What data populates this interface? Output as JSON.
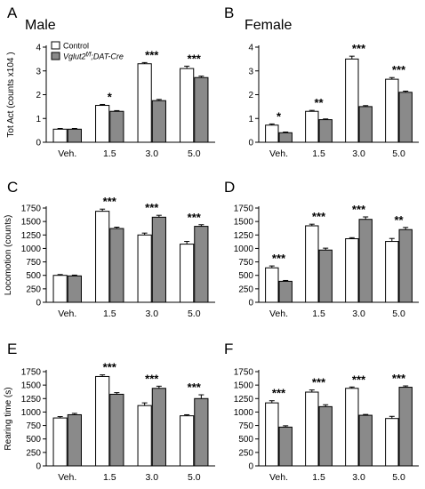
{
  "legend": {
    "control": "Control",
    "mutant_main": "Vglut2",
    "mutant_sup": "f/f",
    "mutant_rest": ";DAT-Cre"
  },
  "colors": {
    "control": "#ffffff",
    "mutant": "#8a8a8a"
  },
  "chart_data": [
    {
      "panel": "A",
      "title": "Male",
      "type": "bar",
      "categories": [
        "Veh.",
        "1.5",
        "3.0",
        "5.0"
      ],
      "ylabel": "Tot Act (counts x104 )",
      "ylim": [
        0,
        4
      ],
      "yticks": [
        0,
        1,
        2,
        3,
        4
      ],
      "series": [
        {
          "name": "Control",
          "values": [
            0.55,
            1.55,
            3.3,
            3.1
          ],
          "errors": [
            0.03,
            0.04,
            0.05,
            0.1
          ]
        },
        {
          "name": "Vglut2 f/f;DAT-Cre",
          "values": [
            0.55,
            1.3,
            1.75,
            2.72
          ],
          "errors": [
            0.03,
            0.03,
            0.05,
            0.06
          ]
        }
      ],
      "significance": [
        "",
        "*",
        "***",
        "***"
      ]
    },
    {
      "panel": "B",
      "title": "Female",
      "type": "bar",
      "categories": [
        "Veh.",
        "1.5",
        "3.0",
        "5.0"
      ],
      "ylabel": "",
      "ylim": [
        0,
        4
      ],
      "yticks": [
        0,
        1,
        2,
        3,
        4
      ],
      "series": [
        {
          "name": "Control",
          "values": [
            0.72,
            1.3,
            3.5,
            2.65
          ],
          "errors": [
            0.05,
            0.04,
            0.12,
            0.07
          ]
        },
        {
          "name": "Vglut2 f/f;DAT-Cre",
          "values": [
            0.4,
            0.95,
            1.5,
            2.1
          ],
          "errors": [
            0.03,
            0.03,
            0.04,
            0.05
          ]
        }
      ],
      "significance": [
        "*",
        "**",
        "***",
        "***"
      ]
    },
    {
      "panel": "C",
      "title": "",
      "type": "bar",
      "categories": [
        "Veh.",
        "1.5",
        "3.0",
        "5.0"
      ],
      "ylabel": "Locomotion (counts)",
      "ylim": [
        0,
        1750
      ],
      "yticks": [
        0,
        250,
        500,
        750,
        1000,
        1250,
        1500,
        1750
      ],
      "series": [
        {
          "name": "Control",
          "values": [
            500,
            1690,
            1250,
            1080
          ],
          "errors": [
            15,
            40,
            35,
            50
          ]
        },
        {
          "name": "Vglut2 f/f;DAT-Cre",
          "values": [
            490,
            1370,
            1580,
            1410
          ],
          "errors": [
            15,
            25,
            35,
            30
          ]
        }
      ],
      "significance": [
        "",
        "***",
        "***",
        "***"
      ]
    },
    {
      "panel": "D",
      "title": "",
      "type": "bar",
      "categories": [
        "Veh.",
        "1.5",
        "3.0",
        "5.0"
      ],
      "ylabel": "",
      "ylim": [
        0,
        1750
      ],
      "yticks": [
        0,
        250,
        500,
        750,
        1000,
        1250,
        1500,
        1750
      ],
      "series": [
        {
          "name": "Control",
          "values": [
            640,
            1420,
            1180,
            1130
          ],
          "errors": [
            35,
            30,
            20,
            55
          ]
        },
        {
          "name": "Vglut2 f/f;DAT-Cre",
          "values": [
            390,
            970,
            1540,
            1350
          ],
          "errors": [
            15,
            35,
            45,
            40
          ]
        }
      ],
      "significance": [
        "***",
        "***",
        "***",
        "**"
      ]
    },
    {
      "panel": "E",
      "title": "",
      "type": "bar",
      "categories": [
        "Veh.",
        "1.5",
        "3.0",
        "5.0"
      ],
      "ylabel": "Rearing time (s)",
      "ylim": [
        0,
        1750
      ],
      "yticks": [
        0,
        250,
        500,
        750,
        1000,
        1250,
        1500,
        1750
      ],
      "series": [
        {
          "name": "Control",
          "values": [
            890,
            1660,
            1120,
            930
          ],
          "errors": [
            25,
            30,
            50,
            20
          ]
        },
        {
          "name": "Vglut2 f/f;DAT-Cre",
          "values": [
            950,
            1330,
            1440,
            1250
          ],
          "errors": [
            25,
            30,
            40,
            70
          ]
        }
      ],
      "significance": [
        "",
        "***",
        "***",
        "***"
      ]
    },
    {
      "panel": "F",
      "title": "",
      "type": "bar",
      "categories": [
        "Veh.",
        "1.5",
        "3.0",
        "5.0"
      ],
      "ylabel": "",
      "ylim": [
        0,
        1750
      ],
      "yticks": [
        0,
        250,
        500,
        750,
        1000,
        1250,
        1500,
        1750
      ],
      "series": [
        {
          "name": "Control",
          "values": [
            1170,
            1370,
            1440,
            880
          ],
          "errors": [
            40,
            40,
            25,
            40
          ]
        },
        {
          "name": "Vglut2 f/f;DAT-Cre",
          "values": [
            720,
            1100,
            940,
            1460
          ],
          "errors": [
            25,
            35,
            15,
            25
          ]
        }
      ],
      "significance": [
        "***",
        "***",
        "***",
        "***"
      ]
    }
  ]
}
